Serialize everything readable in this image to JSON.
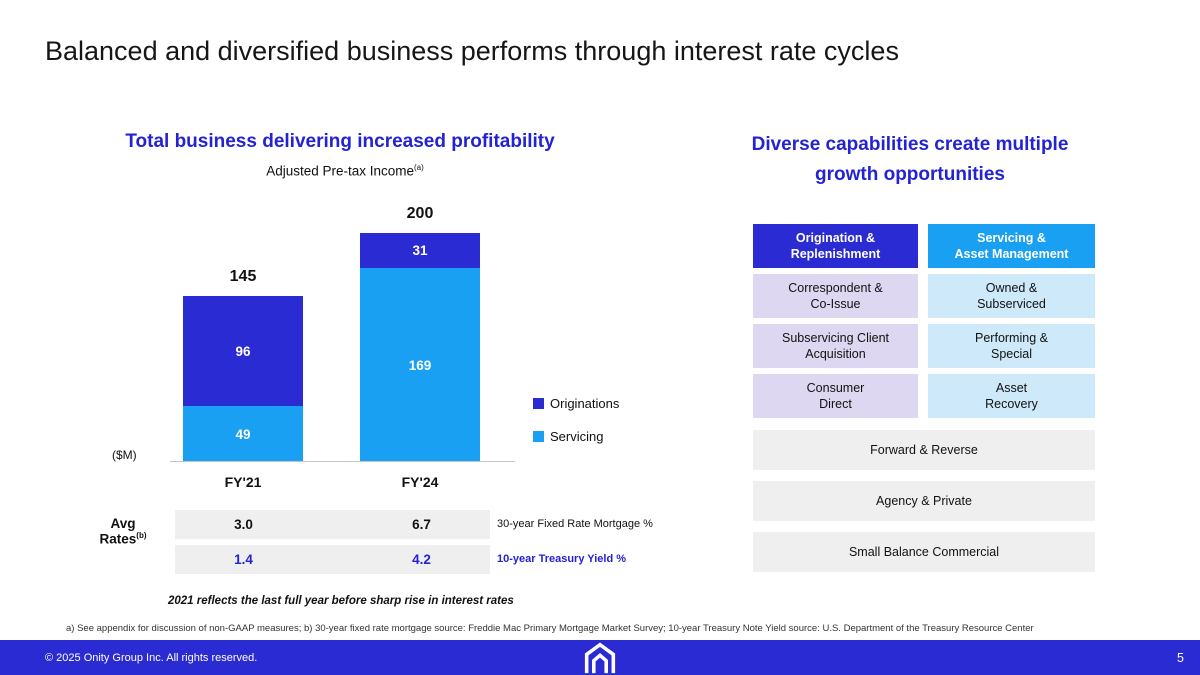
{
  "colors": {
    "accent_dark_blue": "#2b2bd3",
    "accent_light_blue": "#19a0f3",
    "heading_blue": "#2323d3",
    "lavender_cell": "#ddd7f1",
    "light_blue_cell": "#cde9fa",
    "gray_cell": "#efefef",
    "footer_bg": "#2b2bd3"
  },
  "slide": {
    "title": "Balanced and diversified business performs through interest rate cycles"
  },
  "left": {
    "heading": "Total business delivering increased profitability",
    "chart_subtitle": "Adjusted Pre-tax Income",
    "chart_subtitle_sup": "(a)",
    "unit_label": "($M)",
    "legend": [
      {
        "label": "Originations",
        "color": "#2b2bd3"
      },
      {
        "label": "Servicing",
        "color": "#19a0f3"
      }
    ],
    "note": "2021 reflects the last full year before sharp rise in interest rates"
  },
  "chart_data": {
    "type": "bar",
    "stacked": true,
    "title": "Adjusted Pre-tax Income (a)",
    "unit": "$M",
    "categories": [
      "FY'21",
      "FY'24"
    ],
    "series": [
      {
        "name": "Servicing",
        "color": "#19a0f3",
        "values": [
          49,
          169
        ]
      },
      {
        "name": "Originations",
        "color": "#2b2bd3",
        "values": [
          96,
          31
        ]
      }
    ],
    "totals": [
      145,
      200
    ],
    "ylim": [
      0,
      230
    ],
    "legend_position": "right",
    "grid": false
  },
  "rates": {
    "label": "Avg\nRates",
    "label_sup": "(b)",
    "rows": [
      {
        "values": [
          "3.0",
          "6.7"
        ],
        "label": "30-year Fixed Rate Mortgage %",
        "accent": false
      },
      {
        "values": [
          "1.4",
          "4.2"
        ],
        "label": "10-year Treasury Yield %",
        "accent": true
      }
    ]
  },
  "right": {
    "heading": "Diverse capabilities create multiple\ngrowth opportunities",
    "columns": [
      {
        "header": "Origination &\nReplenishment",
        "header_bg": "#2b2bd3",
        "cell_bg": "#ddd7f1",
        "items": [
          "Correspondent &\nCo-Issue",
          "Subservicing Client\nAcquisition",
          "Consumer\nDirect"
        ]
      },
      {
        "header": "Servicing &\nAsset Management",
        "header_bg": "#19a0f3",
        "cell_bg": "#cde9fa",
        "items": [
          "Owned &\nSubserviced",
          "Performing &\nSpecial",
          "Asset\nRecovery"
        ]
      }
    ],
    "shared_rows": [
      "Forward & Reverse",
      "Agency & Private",
      "Small Balance Commercial"
    ]
  },
  "footnote": "a) See appendix for discussion of non-GAAP measures; b) 30-year fixed rate mortgage source: Freddie Mac Primary Mortgage Market Survey; 10-year Treasury Note Yield source: U.S. Department of the Treasury Resource Center",
  "footer": {
    "copyright": "© 2025 Onity Group Inc. All rights reserved.",
    "page_number": "5"
  }
}
